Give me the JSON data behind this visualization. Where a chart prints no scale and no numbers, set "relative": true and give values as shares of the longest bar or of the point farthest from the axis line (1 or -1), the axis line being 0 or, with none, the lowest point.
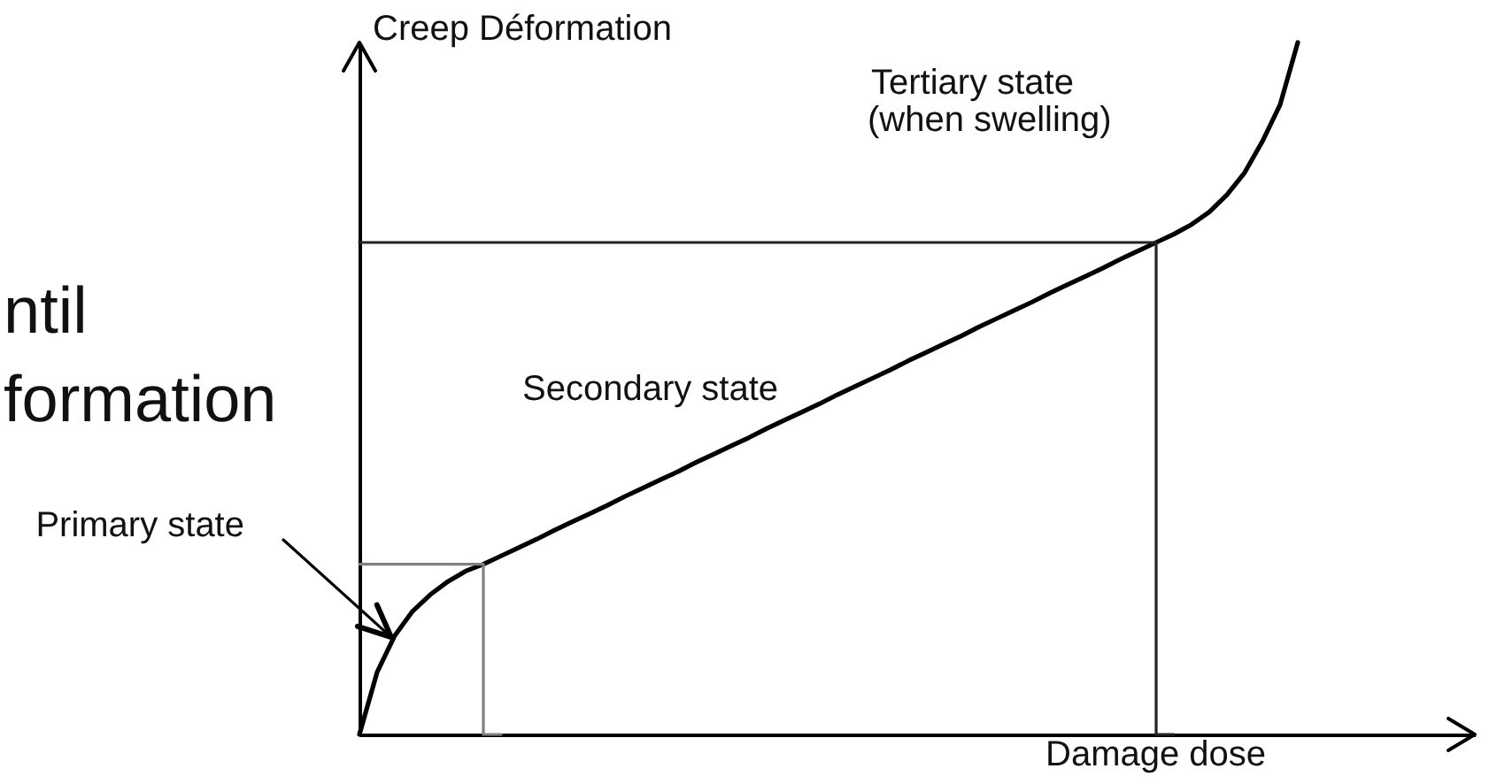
{
  "chart_data": {
    "type": "line",
    "relative": true,
    "xlabel": "Damage dose",
    "ylabel": "Creep Déformation",
    "categories": [
      null,
      null,
      null,
      null,
      null,
      null,
      null,
      null,
      null,
      null,
      null,
      null,
      null,
      null,
      null,
      null,
      null,
      null,
      null,
      null,
      null,
      null,
      null,
      null,
      null,
      null,
      null,
      null,
      null,
      null,
      null,
      null,
      null,
      null,
      null,
      null,
      null,
      null,
      null,
      null,
      null,
      null,
      null,
      null,
      null,
      null,
      null,
      null,
      null,
      null,
      null,
      null,
      null,
      null,
      null,
      null,
      null,
      null,
      null,
      null,
      null,
      null,
      null,
      null
    ],
    "annotations": [
      "ntil",
      "formation",
      "Primary state",
      "Secondary state",
      "Tertiary state",
      "(when swelling)"
    ],
    "series": [
      {
        "color": "#000000",
        "values": [
          0,
          0.09,
          0.143,
          0.178,
          0.202,
          0.221,
          0.236,
          0.246,
          0.258,
          0.27,
          0.282,
          0.295,
          0.307,
          0.319,
          0.331,
          0.344,
          0.356,
          0.368,
          0.38,
          0.393,
          0.405,
          0.417,
          0.429,
          0.442,
          0.454,
          0.466,
          0.478,
          0.491,
          0.503,
          0.515,
          0.527,
          0.54,
          0.552,
          0.564,
          0.576,
          0.589,
          0.601,
          0.613,
          0.625,
          0.638,
          0.65,
          0.662,
          0.674,
          0.687,
          0.699,
          0.711,
          0.723,
          0.737,
          0.755,
          0.78,
          0.812,
          0.857,
          0.91,
          1,
          null,
          null,
          null,
          null,
          null,
          null,
          null,
          null,
          null,
          null
        ]
      },
      {
        "type": "step",
        "color": "#808080",
        "values": [
          0.246,
          0.246,
          0.246,
          0.246,
          0.246,
          0.246,
          0.246,
          0.246,
          0,
          null,
          null,
          null,
          null,
          null,
          null,
          null,
          null,
          null,
          null,
          null,
          null,
          null,
          null,
          null,
          null,
          null,
          null,
          null,
          null,
          null,
          null,
          null,
          null,
          null,
          null,
          null,
          null,
          null,
          null,
          null,
          null,
          null,
          null,
          null,
          null,
          null,
          null,
          null,
          null,
          null,
          null,
          null,
          null,
          null,
          null,
          null,
          null,
          null,
          null,
          null,
          null,
          null,
          null,
          null
        ]
      },
      {
        "type": "step",
        "color": "#222222",
        "values": [
          0.711,
          0.711,
          0.711,
          0.711,
          0.711,
          0.711,
          0.711,
          0.711,
          0.711,
          0.711,
          0.711,
          0.711,
          0.711,
          0.711,
          0.711,
          0.711,
          0.711,
          0.711,
          0.711,
          0.711,
          0.711,
          0.711,
          0.711,
          0.711,
          0.711,
          0.711,
          0.711,
          0.711,
          0.711,
          0.711,
          0.711,
          0.711,
          0.711,
          0.711,
          0.711,
          0.711,
          0.711,
          0.711,
          0.711,
          0.711,
          0.711,
          0.711,
          0.711,
          0.711,
          0.711,
          0.711,
          0,
          null,
          null,
          null,
          null,
          null,
          null,
          null,
          null,
          null,
          null,
          null,
          null,
          null,
          null,
          null,
          null,
          null
        ]
      }
    ]
  }
}
